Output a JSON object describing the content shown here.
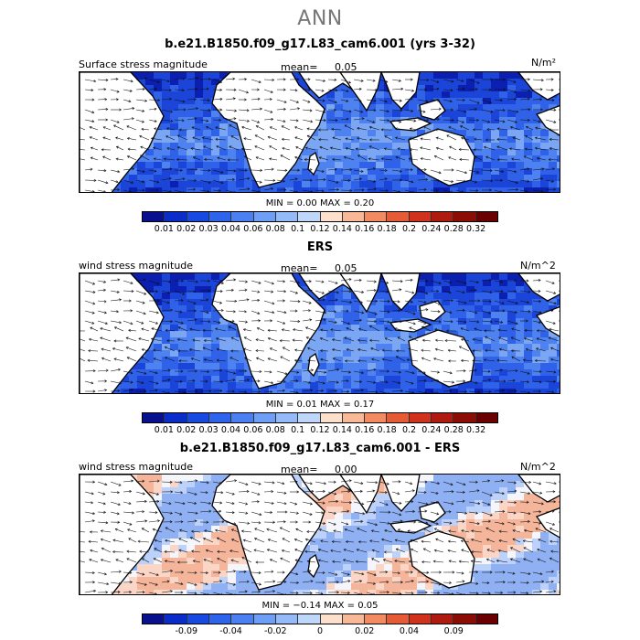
{
  "title": "ANN",
  "panels": [
    {
      "title": "b.e21.B1850.f09_g17.L83_cam6.001 (yrs 3-32)",
      "field_label": "Surface stress magnitude",
      "mean_label": "mean=",
      "mean_value": "0.05",
      "units": "N/m²",
      "minmax": "MIN =    0.00  MAX =    0.20",
      "colorbar_ticks": [
        "0.01",
        "0.02",
        "0.03",
        "0.04",
        "0.06",
        "0.08",
        "0.1",
        "0.12",
        "0.14",
        "0.16",
        "0.18",
        "0.2",
        "0.24",
        "0.28",
        "0.32"
      ],
      "colorbar_colors": [
        "#08108e",
        "#0a2cc8",
        "#1849e0",
        "#2e64ec",
        "#4a80f2",
        "#6e9ef5",
        "#94baf8",
        "#bdd6fa",
        "#fde0cc",
        "#f9b996",
        "#f28a62",
        "#e65a36",
        "#d0321e",
        "#b01b10",
        "#8c0c06",
        "#6a0000"
      ],
      "style": "abs"
    },
    {
      "title": "ERS",
      "field_label": "wind stress magnitude",
      "mean_label": "mean=",
      "mean_value": "0.05",
      "units": "N/m^2",
      "minmax": "MIN =    0.01  MAX =    0.17",
      "colorbar_ticks": [
        "0.01",
        "0.02",
        "0.03",
        "0.04",
        "0.06",
        "0.08",
        "0.1",
        "0.12",
        "0.14",
        "0.16",
        "0.18",
        "0.2",
        "0.24",
        "0.28",
        "0.32"
      ],
      "colorbar_colors": [
        "#08108e",
        "#0a2cc8",
        "#1849e0",
        "#2e64ec",
        "#4a80f2",
        "#6e9ef5",
        "#94baf8",
        "#bdd6fa",
        "#fde0cc",
        "#f9b996",
        "#f28a62",
        "#e65a36",
        "#d0321e",
        "#b01b10",
        "#8c0c06",
        "#6a0000"
      ],
      "style": "abs"
    },
    {
      "title": "b.e21.B1850.f09_g17.L83_cam6.001 - ERS",
      "field_label": "wind stress magnitude",
      "mean_label": "mean=",
      "mean_value": "0.00",
      "units": "N/m^2",
      "minmax": "MIN =  −0.14  MAX =    0.05",
      "colorbar_ticks": [
        "-0.09",
        "-0.04",
        "-0.02",
        "0",
        "0.02",
        "0.04",
        "0.09"
      ],
      "colorbar_colors": [
        "#08108e",
        "#0a2cc8",
        "#1849e0",
        "#2e64ec",
        "#4a80f2",
        "#6e9ef5",
        "#94baf8",
        "#bdd6fa",
        "#fde0cc",
        "#f9b996",
        "#f28a62",
        "#e65a36",
        "#d0321e",
        "#b01b10",
        "#8c0c06",
        "#6a0000"
      ],
      "style": "diff"
    }
  ]
}
